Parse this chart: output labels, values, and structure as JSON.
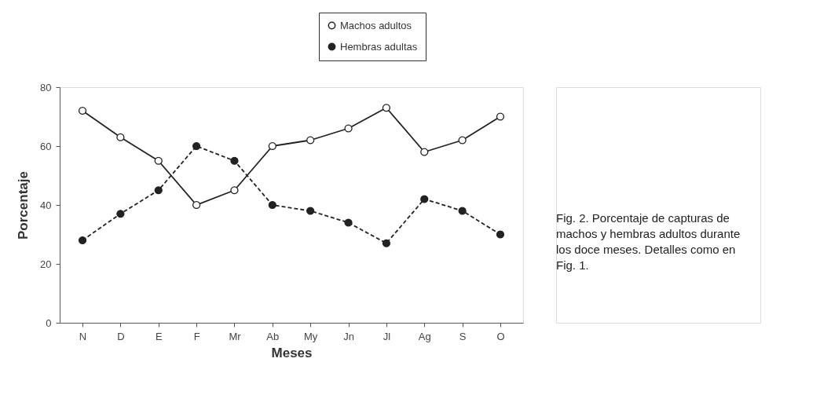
{
  "chart_data": {
    "type": "line",
    "xlabel": "Meses",
    "ylabel": "Porcentaje",
    "categories": [
      "N",
      "D",
      "E",
      "F",
      "Mr",
      "Ab",
      "My",
      "Jn",
      "Jl",
      "Ag",
      "S",
      "O"
    ],
    "series": [
      {
        "name": "Machos adultos",
        "color": "#222222",
        "line_style": "solid",
        "values": [
          72,
          63,
          55,
          40,
          45,
          60,
          62,
          66,
          73,
          58,
          62,
          70
        ]
      },
      {
        "name": "Hembras adultas",
        "color": "#222222",
        "line_style": "dashed",
        "values": [
          28,
          37,
          45,
          60,
          55,
          40,
          38,
          34,
          27,
          42,
          38,
          30
        ]
      }
    ],
    "ylim": [
      0,
      80
    ],
    "yticks": [
      0,
      20,
      40,
      60,
      80
    ],
    "grid": false,
    "legend": "top",
    "marker": "circle",
    "annotations": [
      "Fig. 2. Porcentaje de capturas de machos y hembras adultos durante los doce meses. Detalles como en Fig. 1."
    ]
  }
}
